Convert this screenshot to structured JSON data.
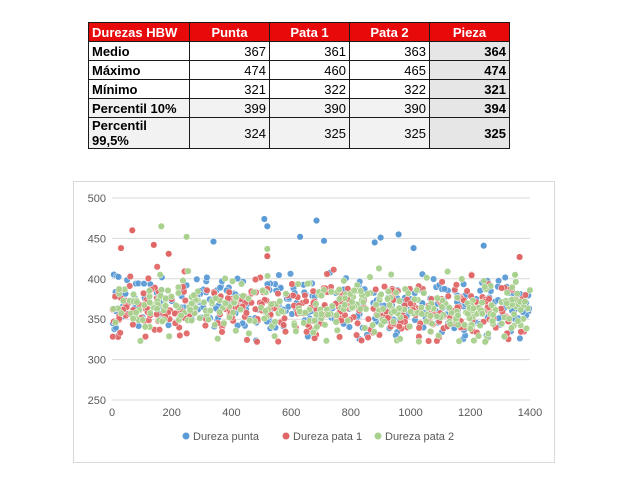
{
  "table": {
    "headers": [
      "Durezas HBW",
      "Punta",
      "Pata 1",
      "Pata 2",
      "Pieza"
    ],
    "rows": [
      {
        "label": "Medio",
        "values": [
          "367",
          "361",
          "363",
          "364"
        ]
      },
      {
        "label": "Máximo",
        "values": [
          "474",
          "460",
          "465",
          "474"
        ]
      },
      {
        "label": "Mínimo",
        "values": [
          "321",
          "322",
          "322",
          "321"
        ]
      },
      {
        "label": "Percentil 10%",
        "values": [
          "399",
          "390",
          "390",
          "394"
        ]
      },
      {
        "label": "Percentil 99,5%",
        "values": [
          "324",
          "325",
          "325",
          "325"
        ]
      }
    ],
    "header_color": "#e8090b"
  },
  "chart_data": {
    "type": "scatter",
    "title": "",
    "xlabel": "",
    "ylabel": "",
    "xlim": [
      0,
      1400
    ],
    "ylim": [
      250,
      500
    ],
    "xticks": [
      "0",
      "200",
      "400",
      "600",
      "800",
      "1000",
      "1200",
      "1400"
    ],
    "yticks": [
      "250",
      "300",
      "350",
      "400",
      "450",
      "500"
    ],
    "grid": "horizontal",
    "legend_position": "bottom",
    "point_count_per_series": 1386,
    "series": [
      {
        "name": "Dureza punta",
        "color": "#5b9bd5",
        "mean": 367,
        "max": 474,
        "min": 321,
        "outliers": [
          [
            510,
            474
          ],
          [
            685,
            472
          ],
          [
            520,
            465
          ],
          [
            630,
            452
          ],
          [
            900,
            451
          ],
          [
            1245,
            441
          ],
          [
            340,
            446
          ],
          [
            960,
            455
          ],
          [
            710,
            447
          ],
          [
            880,
            445
          ],
          [
            1010,
            438
          ]
        ]
      },
      {
        "name": "Dureza pata 1",
        "color": "#e06666",
        "mean": 361,
        "max": 460,
        "min": 322,
        "outliers": [
          [
            68,
            460
          ],
          [
            140,
            442
          ],
          [
            30,
            438
          ],
          [
            1365,
            427
          ],
          [
            190,
            431
          ],
          [
            520,
            428
          ]
        ]
      },
      {
        "name": "Dureza pata 2",
        "color": "#a9d18e",
        "mean": 363,
        "max": 465,
        "min": 322,
        "outliers": [
          [
            165,
            465
          ],
          [
            250,
            452
          ],
          [
            520,
            437
          ],
          [
            1250,
            322
          ],
          [
            1350,
            405
          ]
        ]
      }
    ]
  }
}
